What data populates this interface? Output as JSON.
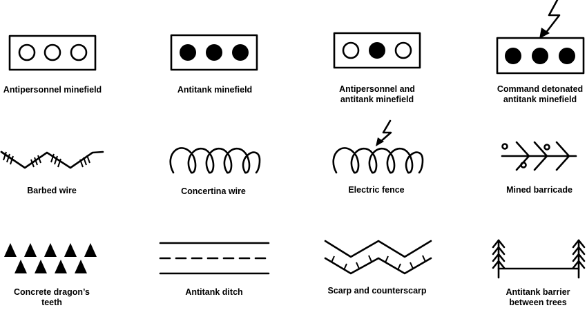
{
  "symbols": [
    {
      "label": "Antipersonnel minefield",
      "icon": "antipersonnel-minefield-icon"
    },
    {
      "label": "Antitank minefield",
      "icon": "antitank-minefield-icon"
    },
    {
      "label_line1": "Antipersonnel and",
      "label_line2": "antitank minefield",
      "icon": "mixed-minefield-icon"
    },
    {
      "label_line1": "Command detonated",
      "label_line2": "antitank minefield",
      "icon": "command-detonated-minefield-icon"
    },
    {
      "label": "Barbed wire",
      "icon": "barbed-wire-icon"
    },
    {
      "label": "Concertina wire",
      "icon": "concertina-wire-icon"
    },
    {
      "label": "Electric fence",
      "icon": "electric-fence-icon"
    },
    {
      "label": "Mined barricade",
      "icon": "mined-barricade-icon"
    },
    {
      "label_line1": "Concrete dragon’s",
      "label_line2": "teeth",
      "icon": "dragons-teeth-icon"
    },
    {
      "label": "Antitank ditch",
      "icon": "antitank-ditch-icon"
    },
    {
      "label": "Scarp and counterscarp",
      "icon": "scarp-counterscarp-icon"
    },
    {
      "label_line1": "Antitank barrier",
      "label_line2": "between trees",
      "icon": "antitank-barrier-trees-icon"
    }
  ],
  "colors": {
    "ink": "#000000",
    "background": "#ffffff"
  }
}
